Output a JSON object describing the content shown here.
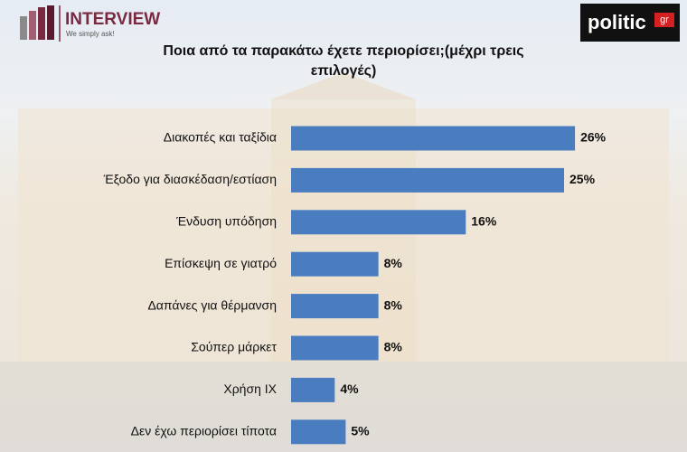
{
  "header": {
    "brand": "INTERVIEW",
    "slogan": "We simply ask!",
    "partner": "politic",
    "partner_suffix": "gr"
  },
  "chart_data": {
    "type": "hbar",
    "title": "Ποια από τα παρακάτω έχετε περιορίσει;(μέχρι τρεις επιλογές)",
    "categories": [
      "Διακοπές και ταξίδια",
      "Έξοδο για διασκέδαση/εστίαση",
      "Ένδυση υπόδηση",
      "Επίσκεψη σε γιατρό",
      "Δαπάνες για θέρμανση",
      "Σούπερ μάρκετ",
      "Χρήση ΙΧ",
      "Δεν έχω περιορίσει τίποτα"
    ],
    "values": [
      26,
      25,
      16,
      8,
      8,
      8,
      4,
      5
    ],
    "value_labels": [
      "26%",
      "25%",
      "16%",
      "8%",
      "8%",
      "8%",
      "4%",
      "5%"
    ],
    "color": "#4a7dbf"
  }
}
